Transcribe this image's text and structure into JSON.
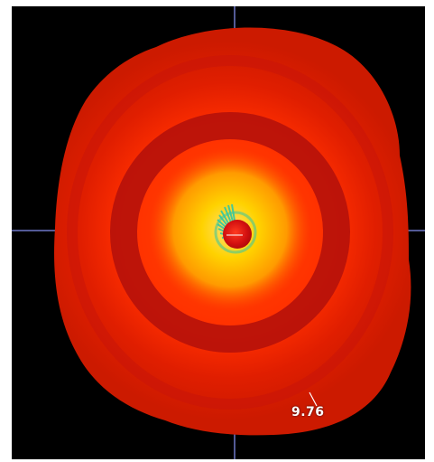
{
  "image": {
    "background_color": "#000000",
    "crosshair_color": "#6f78c8",
    "colors": {
      "outer": "#e02600",
      "mid": "#ff3a00",
      "dark_ring": "#b10f0a",
      "inner_glow": "#ffd200",
      "core": "#cf0f0d",
      "teal_fringe": "#34c7a0"
    },
    "label_text": "9.76"
  }
}
